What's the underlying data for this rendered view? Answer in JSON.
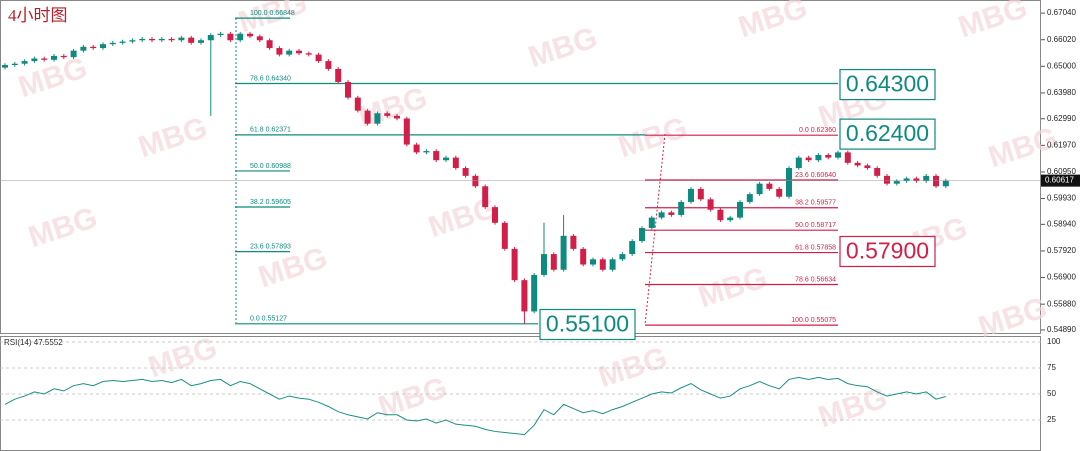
{
  "chart_data": [
    {
      "type": "candlestick",
      "title": "4小时图",
      "watermark": "MBG",
      "up_color": "#0f8a80",
      "down_color": "#d21f4a",
      "open": [
        0.6495,
        0.6505,
        0.651,
        0.652,
        0.653,
        0.6525,
        0.654,
        0.6535,
        0.656,
        0.6575,
        0.657,
        0.6585,
        0.659,
        0.6595,
        0.66,
        0.6605,
        0.66,
        0.6605,
        0.66,
        0.661,
        0.659,
        0.66,
        0.662,
        0.6625,
        0.66,
        0.6625,
        0.6615,
        0.66,
        0.657,
        0.6545,
        0.656,
        0.655,
        0.6545,
        0.652,
        0.649,
        0.644,
        0.638,
        0.633,
        0.628,
        0.632,
        0.631,
        0.63,
        0.62,
        0.617,
        0.6175,
        0.614,
        0.615,
        0.611,
        0.608,
        0.604,
        0.596,
        0.59,
        0.58,
        0.568,
        0.556,
        0.57,
        0.578,
        0.572,
        0.585,
        0.58,
        0.574,
        0.576,
        0.572,
        0.576,
        0.578,
        0.583,
        0.588,
        0.592,
        0.594,
        0.593,
        0.598,
        0.603,
        0.599,
        0.595,
        0.591,
        0.592,
        0.598,
        0.601,
        0.605,
        0.603,
        0.6,
        0.611,
        0.615,
        0.614,
        0.616,
        0.615,
        0.617,
        0.613,
        0.612,
        0.611,
        0.608,
        0.605,
        0.606,
        0.607,
        0.606,
        0.608,
        0.604
      ],
      "high": [
        0.6512,
        0.6517,
        0.6527,
        0.6537,
        0.6537,
        0.6547,
        0.6547,
        0.6567,
        0.6582,
        0.6582,
        0.6592,
        0.6597,
        0.6602,
        0.6607,
        0.6612,
        0.6612,
        0.6612,
        0.6612,
        0.6617,
        0.6617,
        0.6607,
        0.6627,
        0.6632,
        0.6632,
        0.6632,
        0.6632,
        0.6622,
        0.6607,
        0.6577,
        0.6567,
        0.6567,
        0.6557,
        0.6552,
        0.6527,
        0.6497,
        0.6447,
        0.6387,
        0.6337,
        0.6327,
        0.6327,
        0.6317,
        0.6307,
        0.6207,
        0.6182,
        0.6182,
        0.6157,
        0.6157,
        0.6117,
        0.6087,
        0.6047,
        0.5967,
        0.5907,
        0.5807,
        0.5687,
        0.5707,
        0.59,
        0.5787,
        0.593,
        0.5857,
        0.5807,
        0.5767,
        0.5767,
        0.5767,
        0.5787,
        0.5837,
        0.5887,
        0.5927,
        0.5947,
        0.5947,
        0.5987,
        0.6037,
        0.6037,
        0.5997,
        0.5957,
        0.5927,
        0.5987,
        0.6017,
        0.6057,
        0.6057,
        0.6037,
        0.6117,
        0.6157,
        0.6157,
        0.6167,
        0.6167,
        0.6177,
        0.6177,
        0.6137,
        0.6127,
        0.6117,
        0.6087,
        0.6067,
        0.6077,
        0.6077,
        0.6087,
        0.6087,
        0.6069
      ],
      "low": [
        0.6488,
        0.6498,
        0.6503,
        0.6513,
        0.6518,
        0.6518,
        0.6528,
        0.6528,
        0.6553,
        0.6563,
        0.6563,
        0.6578,
        0.6583,
        0.6588,
        0.6593,
        0.6593,
        0.6593,
        0.6593,
        0.6593,
        0.6583,
        0.6583,
        0.631,
        0.6613,
        0.6593,
        0.6593,
        0.6608,
        0.6593,
        0.6563,
        0.6538,
        0.6538,
        0.6543,
        0.6538,
        0.6513,
        0.6483,
        0.6433,
        0.6373,
        0.6323,
        0.6273,
        0.6273,
        0.6303,
        0.6293,
        0.6193,
        0.6163,
        0.6163,
        0.6133,
        0.6133,
        0.6103,
        0.6073,
        0.6033,
        0.5953,
        0.5893,
        0.5793,
        0.5673,
        0.5512,
        0.5553,
        0.5693,
        0.5713,
        0.5713,
        0.5793,
        0.5733,
        0.5733,
        0.5713,
        0.5713,
        0.5753,
        0.5773,
        0.5823,
        0.5873,
        0.5913,
        0.5923,
        0.5923,
        0.5973,
        0.5983,
        0.5943,
        0.5903,
        0.5903,
        0.5913,
        0.5973,
        0.6003,
        0.6023,
        0.5993,
        0.5993,
        0.6103,
        0.6133,
        0.6133,
        0.6143,
        0.6143,
        0.6123,
        0.6113,
        0.6103,
        0.6073,
        0.6043,
        0.6043,
        0.6053,
        0.6053,
        0.6053,
        0.6033,
        0.6033
      ],
      "close": [
        0.6505,
        0.651,
        0.652,
        0.653,
        0.6525,
        0.654,
        0.6535,
        0.656,
        0.6575,
        0.657,
        0.6585,
        0.659,
        0.6595,
        0.66,
        0.6605,
        0.66,
        0.6605,
        0.66,
        0.661,
        0.659,
        0.66,
        0.662,
        0.6625,
        0.66,
        0.6625,
        0.6615,
        0.66,
        0.657,
        0.6545,
        0.656,
        0.655,
        0.6545,
        0.652,
        0.649,
        0.644,
        0.638,
        0.633,
        0.628,
        0.632,
        0.631,
        0.63,
        0.62,
        0.617,
        0.6175,
        0.614,
        0.615,
        0.611,
        0.608,
        0.604,
        0.596,
        0.59,
        0.58,
        0.568,
        0.556,
        0.57,
        0.578,
        0.572,
        0.585,
        0.58,
        0.574,
        0.576,
        0.572,
        0.576,
        0.578,
        0.583,
        0.588,
        0.592,
        0.594,
        0.593,
        0.598,
        0.603,
        0.599,
        0.595,
        0.591,
        0.592,
        0.598,
        0.601,
        0.605,
        0.603,
        0.6,
        0.611,
        0.615,
        0.614,
        0.616,
        0.615,
        0.617,
        0.613,
        0.612,
        0.611,
        0.608,
        0.605,
        0.606,
        0.607,
        0.606,
        0.608,
        0.604,
        0.6062
      ],
      "ylim": [
        0.54774,
        0.67428
      ],
      "yticks": [
        {
          "value": 0.6704,
          "label": "0.67040"
        },
        {
          "value": 0.6602,
          "label": "0.66020"
        },
        {
          "value": 0.65,
          "label": "0.65000"
        },
        {
          "value": 0.6398,
          "label": "0.63980"
        },
        {
          "value": 0.6299,
          "label": "0.62990"
        },
        {
          "value": 0.6197,
          "label": "0.61970"
        },
        {
          "value": 0.6095,
          "label": "0.60950"
        },
        {
          "value": 0.5993,
          "label": "0.59930"
        },
        {
          "value": 0.5894,
          "label": "0.58940"
        },
        {
          "value": 0.5792,
          "label": "0.57920"
        },
        {
          "value": 0.569,
          "label": "0.56900"
        },
        {
          "value": 0.5588,
          "label": "0.55880"
        },
        {
          "value": 0.5489,
          "label": "0.54890"
        }
      ],
      "current_price": {
        "value": 0.60617,
        "label": "0.60617"
      },
      "fib_left": {
        "color": "#0f8a80",
        "levels": [
          {
            "value": 0.66848,
            "label": "100.0  0.66848"
          },
          {
            "value": 0.6434,
            "label": "78.6  0.64340"
          },
          {
            "value": 0.62371,
            "label": "61.8  0.62371"
          },
          {
            "value": 0.60988,
            "label": "50.0  0.60988"
          },
          {
            "value": 0.59605,
            "label": "38.2  0.59605"
          },
          {
            "value": 0.57893,
            "label": "23.6  0.57893"
          },
          {
            "value": 0.55127,
            "label": "0.0  0.55127"
          }
        ]
      },
      "fib_right": {
        "color": "#d21f4a",
        "levels": [
          {
            "value": 0.6236,
            "label": "0.0  0.62360"
          },
          {
            "value": 0.6064,
            "label": "23.6  0.60640"
          },
          {
            "value": 0.59577,
            "label": "38.2  0.59577"
          },
          {
            "value": 0.58717,
            "label": "50.0  0.58717"
          },
          {
            "value": 0.57858,
            "label": "61.8  0.57858"
          },
          {
            "value": 0.56634,
            "label": "78.6  0.56634"
          },
          {
            "value": 0.55075,
            "label": "100.0  0.55075"
          }
        ]
      },
      "boxes": [
        {
          "value": 0.643,
          "label": "0.64300",
          "color": "#0f8a80"
        },
        {
          "value": 0.624,
          "label": "0.62400",
          "color": "#0f8a80"
        },
        {
          "value": 0.579,
          "label": "0.57900",
          "color": "#d21f4a"
        },
        {
          "value": 0.551,
          "label": "0.55100",
          "color": "#0f8a80"
        }
      ]
    },
    {
      "type": "line",
      "title": "RSI(14) 47.5552",
      "color": "#1a8f86",
      "values": [
        40,
        45,
        48,
        52,
        50,
        55,
        53,
        58,
        60,
        58,
        62,
        63,
        62,
        63,
        64,
        62,
        63,
        61,
        64,
        58,
        60,
        63,
        64,
        58,
        62,
        60,
        55,
        50,
        45,
        48,
        46,
        45,
        42,
        38,
        33,
        30,
        28,
        26,
        32,
        30,
        30,
        25,
        24,
        26,
        22,
        25,
        21,
        20,
        19,
        16,
        14,
        13,
        12,
        11,
        20,
        35,
        30,
        40,
        36,
        32,
        34,
        31,
        35,
        38,
        42,
        46,
        50,
        52,
        51,
        56,
        60,
        54,
        50,
        46,
        48,
        55,
        58,
        62,
        58,
        55,
        64,
        66,
        64,
        66,
        64,
        65,
        60,
        58,
        57,
        52,
        48,
        50,
        52,
        50,
        52,
        45,
        47.6
      ],
      "ylim": [
        0,
        100
      ],
      "yticks": [
        25,
        50,
        75,
        100
      ],
      "grid": true
    }
  ]
}
